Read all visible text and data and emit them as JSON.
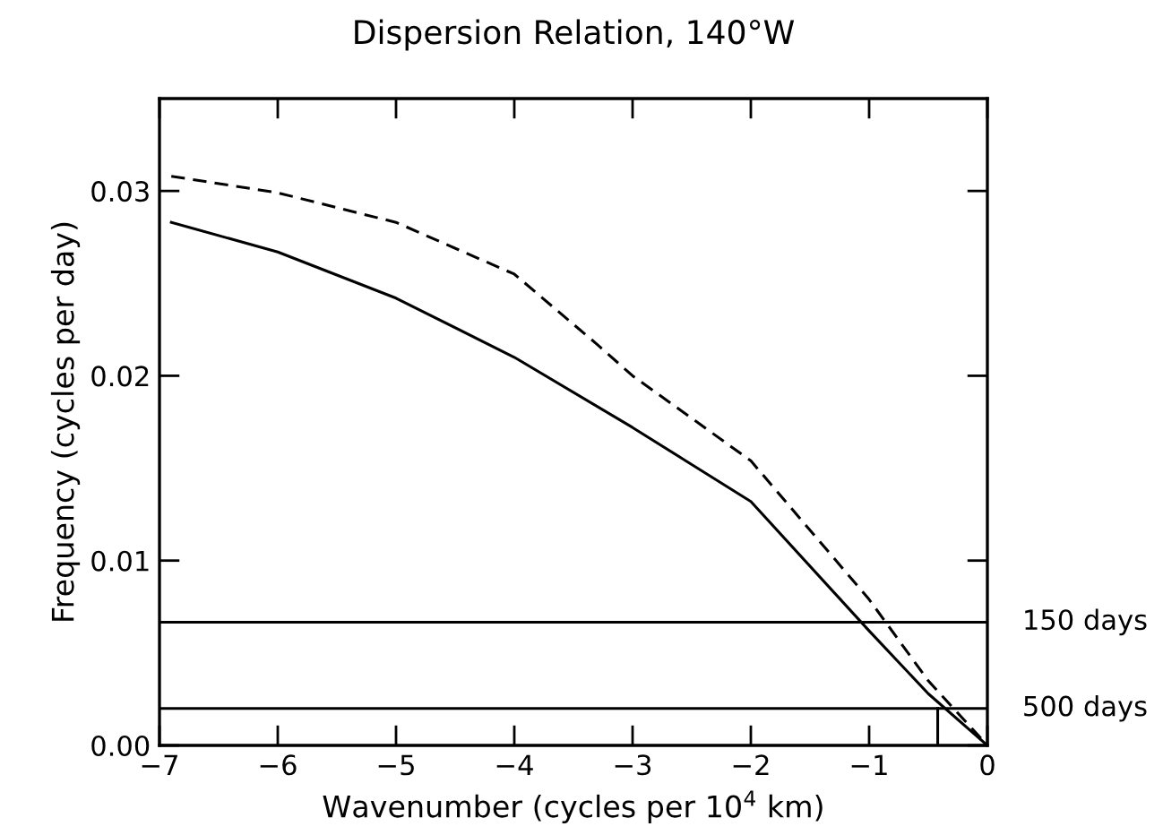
{
  "chart_data": {
    "type": "line",
    "title": "Dispersion Relation, 140°W",
    "xlabel": "Wavenumber (cycles per 10$^{4}$ km)",
    "ylabel": "Frequency (cycles per day)",
    "xlim": [
      -7,
      0
    ],
    "ylim": [
      0,
      0.035
    ],
    "xticks": [
      {
        "value": -7,
        "label": "−7"
      },
      {
        "value": -6,
        "label": "−6"
      },
      {
        "value": -5,
        "label": "−5"
      },
      {
        "value": -4,
        "label": "−4"
      },
      {
        "value": -3,
        "label": "−3"
      },
      {
        "value": -2,
        "label": "−2"
      },
      {
        "value": -1,
        "label": "−1"
      },
      {
        "value": 0,
        "label": "0"
      }
    ],
    "yticks": [
      {
        "value": 0,
        "label": "0.00"
      },
      {
        "value": 0.01,
        "label": "0.01"
      },
      {
        "value": 0.02,
        "label": "0.02"
      },
      {
        "value": 0.03,
        "label": "0.03"
      }
    ],
    "grid": false,
    "legend": false,
    "series": [
      {
        "color": "#000000",
        "line_style": "solid",
        "x": [
          -6.9,
          -6,
          -5,
          -4,
          -3,
          -2,
          -1,
          -0.5,
          0
        ],
        "values": [
          0.0283,
          0.0267,
          0.0242,
          0.021,
          0.0172,
          0.0132,
          0.0062,
          0.0028,
          0
        ]
      },
      {
        "color": "#000000",
        "line_style": "dashed",
        "x": [
          -6.9,
          -6,
          -5,
          -4,
          -3.3,
          -3,
          -2,
          -1,
          -0.5,
          0
        ],
        "values": [
          0.0308,
          0.0299,
          0.0283,
          0.0255,
          0.0217,
          0.02,
          0.0154,
          0.0079,
          0.0035,
          0
        ]
      },
      {
        "color": "#000000",
        "line_style": "solid",
        "x": [
          -0.42,
          -0.42
        ],
        "values": [
          0,
          0.002
        ]
      }
    ],
    "ref_lines": [
      {
        "axis": "y",
        "value": 0.00667,
        "label": "150 days",
        "color": "#000000"
      },
      {
        "axis": "y",
        "value": 0.002,
        "label": "500 days",
        "color": "#000000"
      }
    ]
  }
}
